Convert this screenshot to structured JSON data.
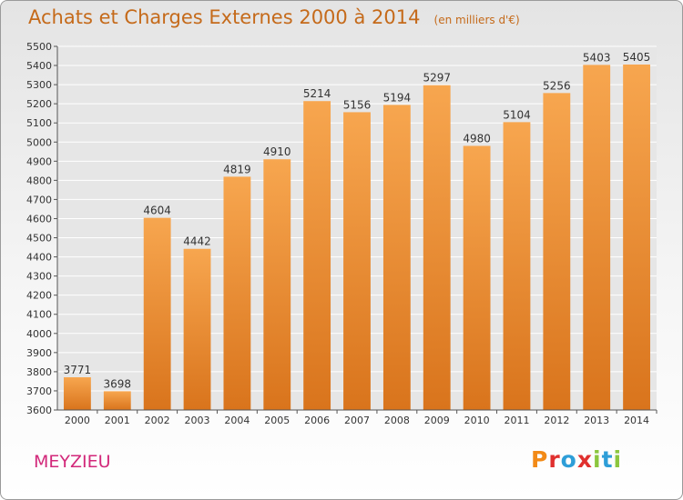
{
  "header": {
    "title": "Achats et Charges Externes 2000 à 2014",
    "unit": "(en milliers d'€)"
  },
  "footer": {
    "city": "MEYZIEU",
    "logo_text": "Proxiti",
    "logo_colors": [
      "#f28a17",
      "#e0302e",
      "#2e9ed8",
      "#e0302e",
      "#8cc63f",
      "#2e9ed8",
      "#8cc63f"
    ]
  },
  "chart_data": {
    "type": "bar",
    "categories": [
      "2000",
      "2001",
      "2002",
      "2003",
      "2004",
      "2005",
      "2006",
      "2007",
      "2008",
      "2009",
      "2010",
      "2011",
      "2012",
      "2013",
      "2014"
    ],
    "values": [
      3771,
      3698,
      4604,
      4442,
      4819,
      4910,
      5214,
      5156,
      5194,
      5297,
      4980,
      5104,
      5256,
      5403,
      5405
    ],
    "ylim": [
      3600,
      5500
    ],
    "yticks": [
      3600,
      3700,
      3800,
      3900,
      4000,
      4100,
      4200,
      4300,
      4400,
      4500,
      4600,
      4700,
      4800,
      4900,
      5000,
      5100,
      5200,
      5300,
      5400,
      5500
    ],
    "grid": true,
    "bar_color_top": "#f7a64f",
    "bar_color_bottom": "#d9741c",
    "grid_color": "#ffffff",
    "text_color": "#333333"
  }
}
